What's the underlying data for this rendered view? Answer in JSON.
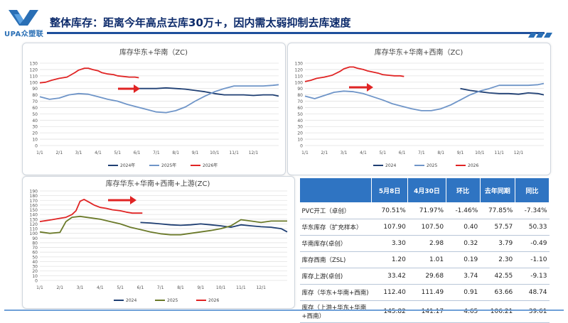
{
  "header": {
    "logo_text": "UPA众塑联",
    "title": "整体库存：距离今年高点去库30万+，因内需太弱抑制去库速度"
  },
  "colors": {
    "title": "#0d2b6b",
    "accent": "#2f74c2",
    "series_2024": "#1f3f73",
    "series_2025": "#6f95c8",
    "series_2026": "#e02424",
    "series_2025_upstream": "#6b7a2a",
    "arrow": "#e02424"
  },
  "chart_data": [
    {
      "type": "line",
      "title": "库存华东+华南（ZC)",
      "x_ticks": [
        "1/1",
        "2/1",
        "3/1",
        "4/1",
        "5/1",
        "6/1",
        "7/1",
        "8/1",
        "9/1",
        "10/1",
        "11/1",
        "12/1"
      ],
      "ylim": [
        0,
        130
      ],
      "yticks": [
        0,
        10,
        20,
        30,
        40,
        50,
        60,
        70,
        80,
        90,
        100,
        110,
        120,
        130
      ],
      "grid": true,
      "legend": "bottom",
      "series": [
        {
          "name": "2024年",
          "color_key": "series_2024",
          "x": [
            5.0,
            5.5,
            6.0,
            6.5,
            7.0,
            7.5,
            8.0,
            8.5,
            9.0,
            9.5,
            10.0,
            10.5,
            11.0,
            11.5,
            12.0,
            12.3
          ],
          "y": [
            90,
            90,
            90,
            91,
            90,
            89,
            87,
            85,
            82,
            80,
            80,
            80,
            79,
            80,
            80,
            78
          ]
        },
        {
          "name": "2025年",
          "color_key": "series_2025",
          "x": [
            0,
            0.5,
            1.0,
            1.5,
            2.0,
            2.5,
            3.0,
            3.5,
            4.0,
            4.5,
            5.0,
            5.5,
            6.0,
            6.5,
            7.0,
            7.5,
            8.0,
            8.5,
            9.0,
            9.5,
            10.0,
            10.5,
            11.0,
            11.5,
            12.0,
            12.3
          ],
          "y": [
            77,
            73,
            75,
            80,
            82,
            81,
            77,
            73,
            70,
            65,
            61,
            57,
            53,
            52,
            55,
            61,
            70,
            78,
            85,
            90,
            94,
            94,
            94,
            94,
            95,
            96
          ]
        },
        {
          "name": "2026年",
          "color_key": "series_2026",
          "x": [
            0,
            0.3,
            0.6,
            1.0,
            1.4,
            1.8,
            2.0,
            2.3,
            2.5,
            2.7,
            3.0,
            3.2,
            3.5,
            3.8,
            4.0,
            4.3,
            4.6,
            4.9,
            5.1
          ],
          "y": [
            99,
            100,
            103,
            106,
            108,
            115,
            119,
            122,
            122,
            120,
            118,
            115,
            113,
            112,
            110,
            109,
            108,
            108,
            107
          ]
        }
      ]
    },
    {
      "type": "line",
      "title": "库存华东+华南+西南（ZC)",
      "x_ticks": [
        "1/1",
        "2/1",
        "3/1",
        "4/1",
        "5/1",
        "6/1",
        "7/1",
        "8/1",
        "9/1",
        "10/1",
        "11/1",
        "12/1"
      ],
      "ylim": [
        0,
        130
      ],
      "yticks": [
        0,
        10,
        20,
        30,
        40,
        50,
        60,
        70,
        80,
        90,
        100,
        110,
        120,
        130
      ],
      "grid": true,
      "legend": "bottom",
      "series": [
        {
          "name": "2024",
          "color_key": "series_2024",
          "x": [
            8.0,
            8.5,
            9.0,
            9.5,
            10.0,
            10.5,
            11.0,
            11.5,
            12.0,
            12.3
          ],
          "y": [
            90,
            87,
            85,
            83,
            82,
            82,
            81,
            83,
            82,
            80
          ]
        },
        {
          "name": "2025",
          "color_key": "series_2025",
          "x": [
            0,
            0.5,
            1.0,
            1.5,
            2.0,
            2.5,
            3.0,
            3.5,
            4.0,
            4.5,
            5.0,
            5.5,
            6.0,
            6.5,
            7.0,
            7.5,
            8.0,
            8.5,
            9.0,
            9.5,
            10.0,
            10.5,
            11.0,
            11.5,
            12.0,
            12.3
          ],
          "y": [
            78,
            74,
            79,
            84,
            86,
            85,
            82,
            77,
            72,
            66,
            62,
            58,
            55,
            55,
            58,
            64,
            72,
            80,
            86,
            90,
            95,
            95,
            95,
            95,
            96,
            98
          ]
        },
        {
          "name": "2026",
          "color_key": "series_2026",
          "x": [
            0,
            0.3,
            0.6,
            1.0,
            1.4,
            1.8,
            2.0,
            2.3,
            2.5,
            2.7,
            3.0,
            3.2,
            3.5,
            3.8,
            4.0,
            4.3,
            4.6,
            4.9,
            5.1
          ],
          "y": [
            101,
            103,
            106,
            108,
            111,
            117,
            121,
            124,
            124,
            122,
            120,
            118,
            116,
            114,
            112,
            111,
            110,
            110,
            109
          ]
        }
      ]
    },
    {
      "type": "line",
      "title": "库存华东+华南+西南+上游(ZC)",
      "x_ticks": [
        "1/1",
        "2/1",
        "3/1",
        "4/1",
        "5/1",
        "6/1",
        "7/1",
        "8/1",
        "9/1",
        "10/1",
        "11/1",
        "12/1"
      ],
      "ylim": [
        0,
        190
      ],
      "yticks": [
        0,
        10,
        20,
        30,
        40,
        50,
        60,
        70,
        80,
        90,
        100,
        110,
        120,
        130,
        140,
        150,
        160,
        170,
        180,
        190
      ],
      "grid": true,
      "legend": "bottom",
      "series": [
        {
          "name": "2024",
          "color_key": "series_2024",
          "x": [
            5.0,
            5.5,
            6.0,
            6.5,
            7.0,
            7.5,
            8.0,
            8.5,
            9.0,
            9.5,
            10.0,
            10.5,
            11.0,
            11.5,
            12.0,
            12.3
          ],
          "y": [
            123,
            122,
            120,
            118,
            117,
            118,
            120,
            118,
            116,
            113,
            118,
            116,
            114,
            113,
            110,
            103
          ]
        },
        {
          "name": "2025",
          "color_key": "series_2025_upstream",
          "x": [
            0,
            0.5,
            1.0,
            1.3,
            1.6,
            2.0,
            2.5,
            3.0,
            3.5,
            4.0,
            4.5,
            5.0,
            5.5,
            6.0,
            6.5,
            7.0,
            7.5,
            8.0,
            8.5,
            9.0,
            9.5,
            10.0,
            10.5,
            11.0,
            11.5,
            12.0,
            12.3
          ],
          "y": [
            103,
            100,
            102,
            125,
            134,
            136,
            133,
            130,
            125,
            120,
            113,
            108,
            103,
            99,
            97,
            97,
            100,
            103,
            106,
            110,
            116,
            129,
            126,
            123,
            126,
            126,
            126
          ]
        },
        {
          "name": "2026",
          "color_key": "series_2026",
          "x": [
            0,
            0.3,
            0.6,
            1.0,
            1.3,
            1.6,
            1.8,
            2.0,
            2.2,
            2.5,
            2.7,
            3.0,
            3.3,
            3.6,
            4.0,
            4.3,
            4.6,
            5.1
          ],
          "y": [
            125,
            127,
            129,
            132,
            134,
            140,
            148,
            168,
            172,
            165,
            160,
            155,
            153,
            150,
            148,
            145,
            143,
            143
          ]
        }
      ]
    }
  ],
  "table": {
    "headers": [
      "",
      "5月8日",
      "4月30日",
      "环比",
      "去年同期",
      "同比"
    ],
    "rows": [
      {
        "label": "PVC开工（卓创）",
        "v1": "70.51%",
        "v2": "71.97%",
        "v3": "-1.46%",
        "v4": "77.85%",
        "v5": "-7.34%"
      },
      {
        "label": "华东库存（扩充样本）",
        "v1": "107.90",
        "v2": "107.50",
        "v3": "0.40",
        "v4": "57.57",
        "v5": "50.33"
      },
      {
        "label": "华南库存(卓创）",
        "v1": "3.30",
        "v2": "2.98",
        "v3": "0.32",
        "v4": "3.79",
        "v5": "-0.49"
      },
      {
        "label": "库存西南（ZSL)",
        "v1": "1.20",
        "v2": "1.01",
        "v3": "0.19",
        "v4": "2.30",
        "v5": "-1.10"
      },
      {
        "label": "库存上游(卓创)",
        "v1": "33.42",
        "v2": "29.68",
        "v3": "3.74",
        "v4": "42.55",
        "v5": "-9.13"
      },
      {
        "label": "库存（华东+华南+西南)",
        "v1": "112.40",
        "v2": "111.49",
        "v3": "0.91",
        "v4": "63.66",
        "v5": "48.74"
      },
      {
        "label": "库存（上游+华东+华南+西南）",
        "v1": "145.82",
        "v2": "141.17",
        "v3": "4.65",
        "v4": "106.21",
        "v5": "39.61"
      }
    ]
  }
}
